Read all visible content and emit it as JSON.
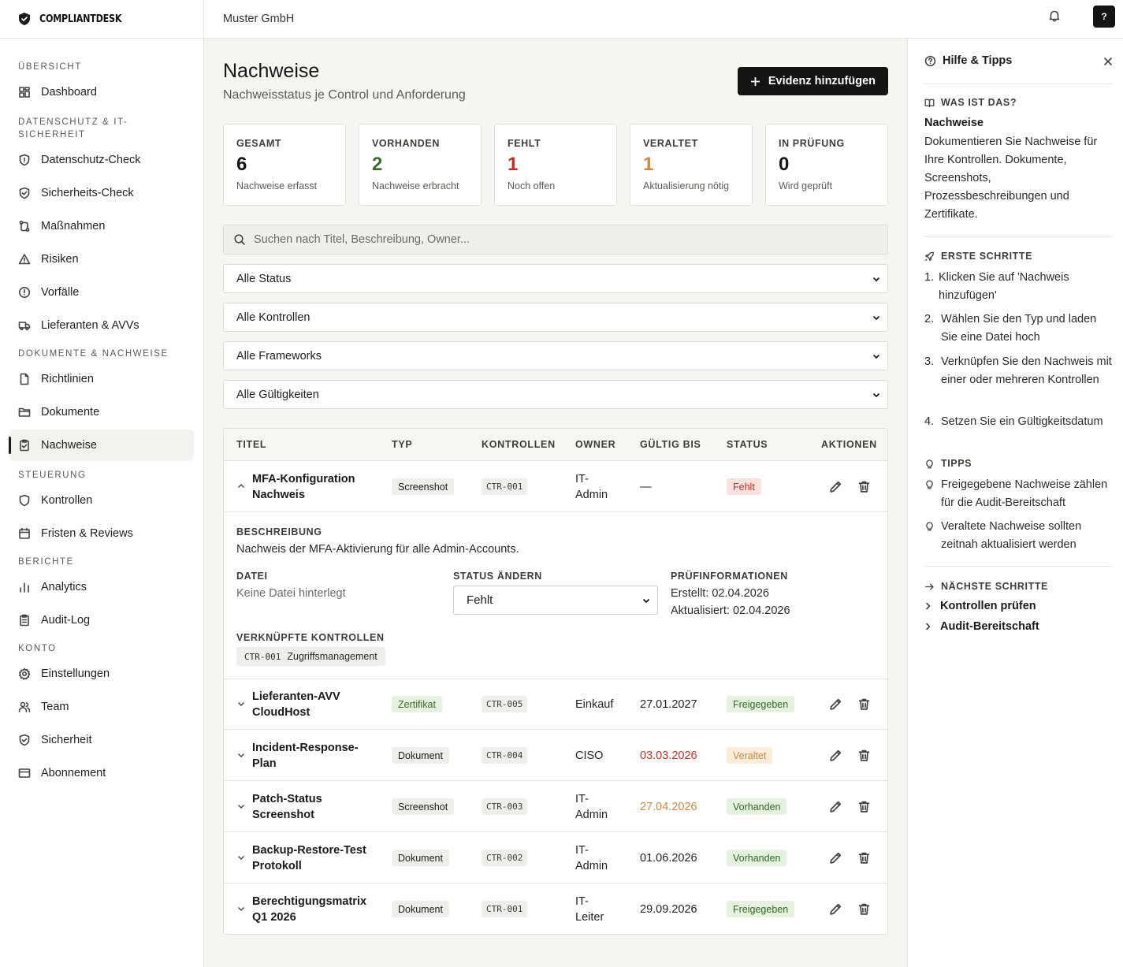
{
  "brand": {
    "name": "COMPLIANTDESK"
  },
  "topbar": {
    "org": "Muster GmbH",
    "help": "?"
  },
  "sidebar": {
    "sections": [
      {
        "title": "ÜBERSICHT",
        "items": [
          {
            "label": "Dashboard",
            "icon": "dashboard-icon"
          }
        ]
      },
      {
        "title": "DATENSCHUTZ & IT-SICHERHEIT",
        "items": [
          {
            "label": "Datenschutz-Check",
            "icon": "shield-icon"
          },
          {
            "label": "Sicherheits-Check",
            "icon": "shield-check-icon"
          },
          {
            "label": "Maßnahmen",
            "icon": "route-icon"
          },
          {
            "label": "Risiken",
            "icon": "warning-icon"
          },
          {
            "label": "Vorfälle",
            "icon": "alert-circle-icon"
          },
          {
            "label": "Lieferanten & AVVs",
            "icon": "truck-icon"
          }
        ]
      },
      {
        "title": "DOKUMENTE & NACHWEISE",
        "items": [
          {
            "label": "Richtlinien",
            "icon": "file-icon"
          },
          {
            "label": "Dokumente",
            "icon": "folder-icon"
          },
          {
            "label": "Nachweise",
            "icon": "clipboard-check-icon"
          }
        ]
      },
      {
        "title": "STEUERUNG",
        "items": [
          {
            "label": "Kontrollen",
            "icon": "shield-icon"
          },
          {
            "label": "Fristen & Reviews",
            "icon": "calendar-icon"
          }
        ]
      },
      {
        "title": "BERICHTE",
        "items": [
          {
            "label": "Analytics",
            "icon": "bar-chart-icon"
          },
          {
            "label": "Audit-Log",
            "icon": "clipboard-icon"
          }
        ]
      },
      {
        "title": "KONTO",
        "items": [
          {
            "label": "Einstellungen",
            "icon": "gear-icon"
          },
          {
            "label": "Team",
            "icon": "users-icon"
          },
          {
            "label": "Sicherheit",
            "icon": "shield-check-icon"
          },
          {
            "label": "Abonnement",
            "icon": "credit-card-icon"
          }
        ]
      }
    ],
    "active": "Nachweise"
  },
  "main": {
    "title": "Nachweise",
    "subtitle": "Nachweisstatus je Control und Anforderung",
    "add_button": "Evidenz hinzufügen",
    "stats": [
      {
        "label": "GESAMT",
        "value": "6",
        "sub": "Nachweise erfasst",
        "color": "#151514"
      },
      {
        "label": "VORHANDEN",
        "value": "2",
        "sub": "Nachweise erbracht",
        "color": "#3f6b2e"
      },
      {
        "label": "FEHLT",
        "value": "1",
        "sub": "Noch offen",
        "color": "#b8322a"
      },
      {
        "label": "VERALTET",
        "value": "1",
        "sub": "Aktualisierung nötig",
        "color": "#c88a43"
      },
      {
        "label": "IN PRÜFUNG",
        "value": "0",
        "sub": "Wird geprüft",
        "color": "#151514"
      }
    ],
    "search_placeholder": "Suchen nach Titel, Beschreibung, Owner...",
    "filters": [
      "Alle Status",
      "Alle Kontrollen",
      "Alle Frameworks",
      "Alle Gültigkeiten"
    ],
    "table": {
      "headers": [
        "TITEL",
        "TYP",
        "KONTROLLEN",
        "OWNER",
        "GÜLTIG BIS",
        "STATUS",
        "AKTIONEN"
      ],
      "rows": [
        {
          "title_1": "MFA-Konfiguration",
          "title_2": "Nachweis",
          "type": "Screenshot",
          "control": "CTR-001",
          "owner_1": "IT-",
          "owner_2": "Admin",
          "valid": "—",
          "status": "Fehlt"
        },
        {
          "title_1": "Lieferanten-AVV",
          "title_2": "CloudHost",
          "type": "Zertifikat",
          "control": "CTR-005",
          "owner_1": "Einkauf",
          "owner_2": "",
          "valid": "27.01.2027",
          "status": "Freigegeben"
        },
        {
          "title_1": "Incident-Response-",
          "title_2": "Plan",
          "type": "Dokument",
          "control": "CTR-004",
          "owner_1": "CISO",
          "owner_2": "",
          "valid": "03.03.2026",
          "status": "Veraltet"
        },
        {
          "title_1": "Patch-Status",
          "title_2": "Screenshot",
          "type": "Screenshot",
          "control": "CTR-003",
          "owner_1": "IT-",
          "owner_2": "Admin",
          "valid": "27.04.2026",
          "status": "Vorhanden"
        },
        {
          "title_1": "Backup-Restore-Test",
          "title_2": "Protokoll",
          "type": "Dokument",
          "control": "CTR-002",
          "owner_1": "IT-",
          "owner_2": "Admin",
          "valid": "01.06.2026",
          "status": "Vorhanden"
        },
        {
          "title_1": "Berechtigungsmatrix",
          "title_2": "Q1 2026",
          "type": "Dokument",
          "control": "CTR-001",
          "owner_1": "IT-",
          "owner_2": "Leiter",
          "valid": "29.09.2026",
          "status": "Freigegeben"
        }
      ]
    },
    "detail": {
      "desc_label": "BESCHREIBUNG",
      "desc": "Nachweis der MFA-Aktivierung für alle Admin-Accounts.",
      "file_label": "DATEI",
      "file": "Keine Datei hinterlegt",
      "status_label": "STATUS ÄNDERN",
      "status_value": "Fehlt",
      "info_label": "PRÜFINFORMATIONEN",
      "created": "Erstellt: 02.04.2026",
      "updated": "Aktualisiert: 02.04.2026",
      "linked_label": "VERKNÜPFTE KONTROLLEN",
      "linked_code": "CTR-001",
      "linked_name": "Zugriffsmanagement"
    }
  },
  "help": {
    "title": "Hilfe & Tipps",
    "what_label": "WAS IST DAS?",
    "what_title": "Nachweise",
    "what_text": "Dokumentieren Sie Nachweise für Ihre Kontrollen. Dokumente, Screenshots, Prozessbeschreibungen und Zertifikate.",
    "steps_label": "ERSTE SCHRITTE",
    "steps": [
      {
        "n": "1.",
        "t": "Klicken Sie auf 'Nachweis hinzufügen'"
      },
      {
        "n": "2.",
        "t": "Wählen Sie den Typ und laden Sie eine Datei hoch"
      },
      {
        "n": "3.",
        "t": "Verknüpfen Sie den Nachweis mit einer oder mehreren Kontrollen"
      },
      {
        "n": "4.",
        "t": "Setzen Sie ein Gültigkeitsdatum"
      }
    ],
    "tips_label": "TIPPS",
    "tips": [
      "Freigegebene Nachweise zählen für die Audit-Bereitschaft",
      "Veraltete Nachweise sollten zeitnah aktualisiert werden"
    ],
    "next_label": "NÄCHSTE SCHRITTE",
    "next": [
      "Kontrollen prüfen",
      "Audit-Bereitschaft"
    ]
  }
}
